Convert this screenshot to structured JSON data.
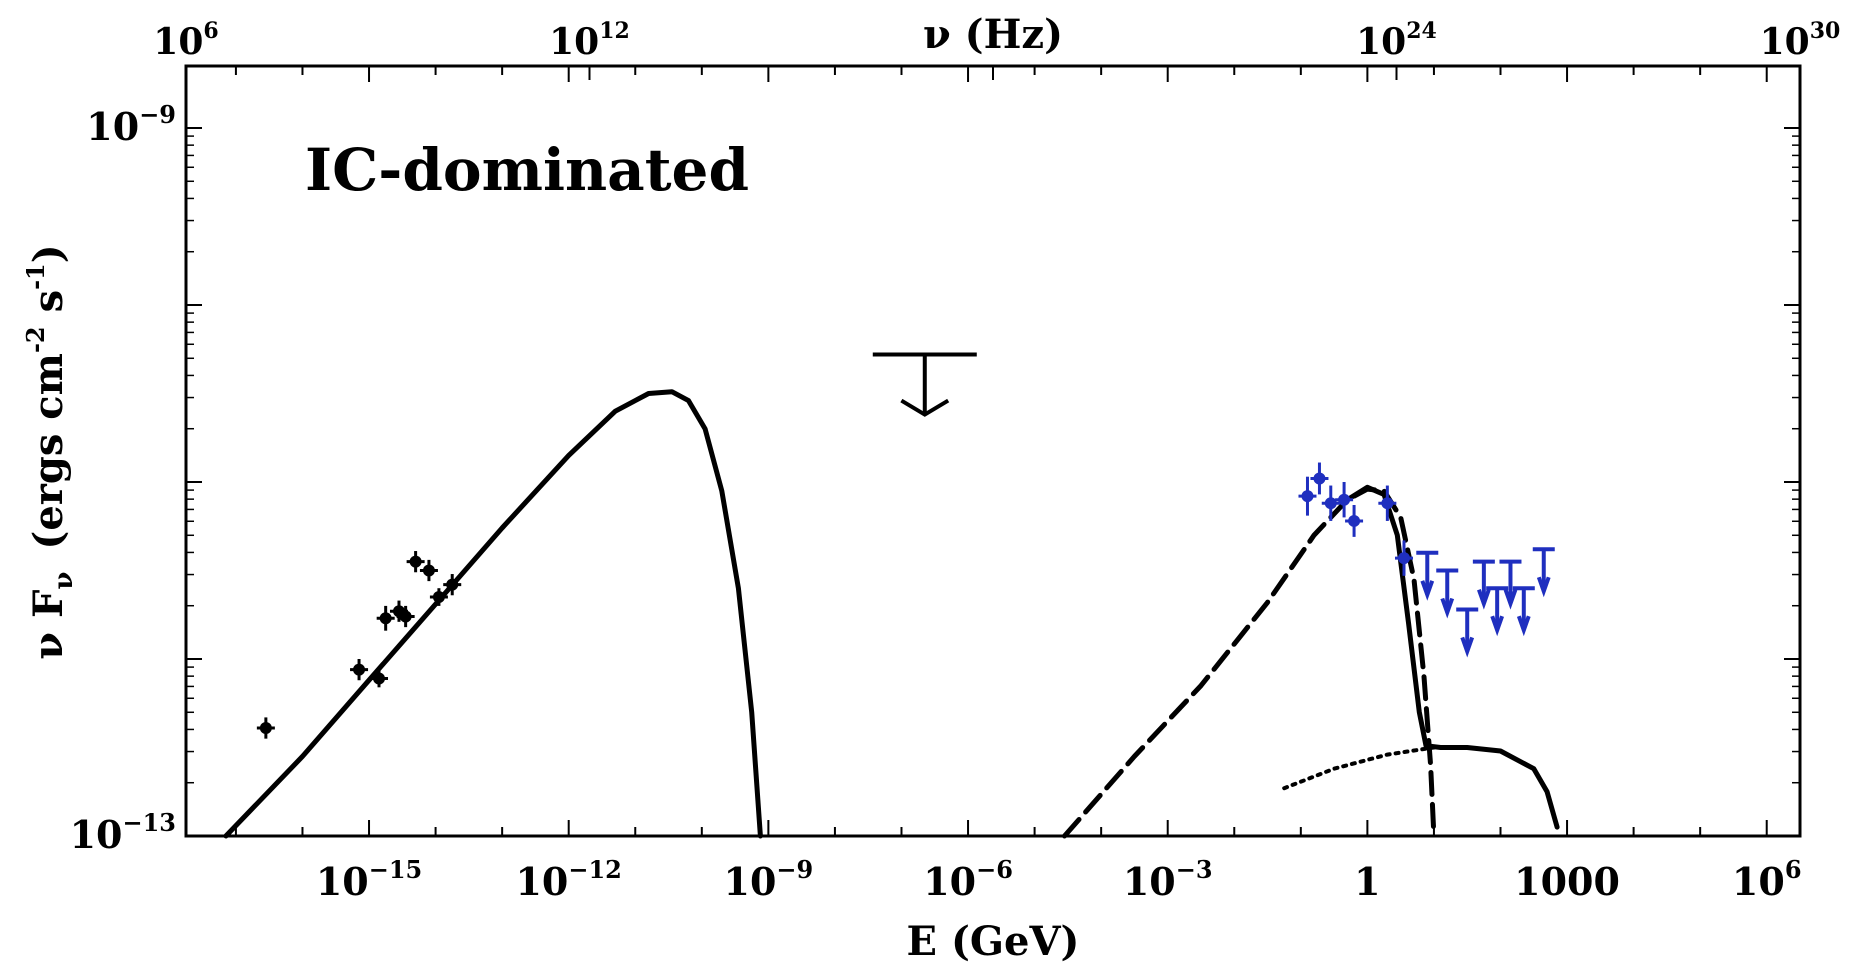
{
  "chart_data": {
    "type": "scatter",
    "xlabel": "E (GeV)",
    "ylabel": "ν F",
    "ylabel_sub": "ν",
    "ylabel_units": "(ergs cm",
    "ylabel_units_exp1": "-2",
    "ylabel_units_mid": " s",
    "ylabel_units_exp2": "-1",
    "ylabel_units_end": ")",
    "x2label": "ν (Hz)",
    "annotation": "IC-dominated",
    "x_scale": "log",
    "y_scale": "log",
    "xlim_log10": [
      -17.75,
      6.5
    ],
    "ylim_log10": [
      -13,
      -9.25
    ],
    "x2lim_log10": [
      6,
      30
    ],
    "x_ticks": [
      {
        "base": "10",
        "exp": "−15",
        "log": -15
      },
      {
        "base": "10",
        "exp": "−12",
        "log": -12
      },
      {
        "base": "10",
        "exp": "−9",
        "log": -9
      },
      {
        "base": "10",
        "exp": "−6",
        "log": -6
      },
      {
        "base": "10",
        "exp": "−3",
        "log": -3
      },
      {
        "base": "1",
        "exp": "",
        "log": 0
      },
      {
        "base": "1000",
        "exp": "",
        "log": 3
      },
      {
        "base": "10",
        "exp": "6",
        "log": 6
      }
    ],
    "x2_ticks": [
      {
        "base": "10",
        "exp": "6",
        "log": 6
      },
      {
        "base": "10",
        "exp": "12",
        "log": 12
      },
      {
        "base": "10",
        "exp": "24",
        "log": 24
      },
      {
        "base": "10",
        "exp": "30",
        "log": 30
      }
    ],
    "y_ticks": [
      {
        "base": "10",
        "exp": "−9",
        "log": -9
      },
      {
        "base": "10",
        "exp": "−13",
        "log": -13
      }
    ],
    "series": [
      {
        "style": "solid",
        "color": "#000000",
        "points": [
          [
            -17.15,
            -13.0
          ],
          [
            -16,
            -12.55
          ],
          [
            -15,
            -12.12
          ],
          [
            -14,
            -11.69
          ],
          [
            -13,
            -11.26
          ],
          [
            -12,
            -10.85
          ],
          [
            -11.3,
            -10.6
          ],
          [
            -10.8,
            -10.5
          ],
          [
            -10.45,
            -10.49
          ],
          [
            -10.2,
            -10.54
          ],
          [
            -9.95,
            -10.7
          ],
          [
            -9.7,
            -11.05
          ],
          [
            -9.45,
            -11.6
          ],
          [
            -9.25,
            -12.3
          ],
          [
            -9.12,
            -13.0
          ]
        ]
      },
      {
        "style": "dashed",
        "color": "#000000",
        "points": [
          [
            -4.55,
            -13.0
          ],
          [
            -3.5,
            -12.55
          ],
          [
            -2.5,
            -12.15
          ],
          [
            -1.5,
            -11.68
          ],
          [
            -0.8,
            -11.3
          ],
          [
            -0.3,
            -11.1
          ],
          [
            0.0,
            -11.04
          ],
          [
            0.25,
            -11.05
          ],
          [
            0.5,
            -11.2
          ],
          [
            0.7,
            -11.55
          ],
          [
            0.85,
            -12.1
          ],
          [
            0.95,
            -12.6
          ],
          [
            1.0,
            -13.0
          ]
        ]
      },
      {
        "style": "dotted",
        "color": "#000000",
        "points": [
          [
            -1.25,
            -12.73
          ],
          [
            -0.5,
            -12.62
          ],
          [
            0.3,
            -12.54
          ],
          [
            1.0,
            -12.5
          ]
        ]
      },
      {
        "style": "solid",
        "color": "#000000",
        "points": [
          [
            -0.3,
            -11.1
          ],
          [
            0.0,
            -11.03
          ],
          [
            0.25,
            -11.07
          ],
          [
            0.45,
            -11.3
          ],
          [
            0.62,
            -11.8
          ],
          [
            0.78,
            -12.3
          ],
          [
            0.88,
            -12.49
          ],
          [
            1.1,
            -12.5
          ],
          [
            1.5,
            -12.5
          ],
          [
            2.0,
            -12.52
          ],
          [
            2.5,
            -12.62
          ],
          [
            2.7,
            -12.75
          ],
          [
            2.85,
            -12.95
          ]
        ]
      }
    ],
    "data_points_black": [
      {
        "x": -16.55,
        "y": -12.39,
        "yerr": 0.06
      },
      {
        "x": -15.15,
        "y": -12.06,
        "yerr": 0.06
      },
      {
        "x": -14.85,
        "y": -12.11,
        "yerr": 0.05
      },
      {
        "x": -14.75,
        "y": -11.77,
        "yerr": 0.07
      },
      {
        "x": -14.55,
        "y": -11.73,
        "yerr": 0.06
      },
      {
        "x": -14.45,
        "y": -11.76,
        "yerr": 0.06
      },
      {
        "x": -14.3,
        "y": -11.45,
        "yerr": 0.06
      },
      {
        "x": -14.1,
        "y": -11.5,
        "yerr": 0.06
      },
      {
        "x": -13.95,
        "y": -11.65,
        "yerr": 0.05
      },
      {
        "x": -13.75,
        "y": -11.58,
        "yerr": 0.06
      }
    ],
    "upper_limit_black": {
      "x": -6.65,
      "y": -10.28
    },
    "data_points_blue": [
      {
        "x": -0.9,
        "y": -11.08,
        "yerr": 0.11
      },
      {
        "x": -0.72,
        "y": -10.98,
        "yerr": 0.09
      },
      {
        "x": -0.55,
        "y": -11.12,
        "yerr": 0.1
      },
      {
        "x": -0.35,
        "y": -11.1,
        "yerr": 0.1
      },
      {
        "x": -0.2,
        "y": -11.22,
        "yerr": 0.09
      },
      {
        "x": 0.3,
        "y": -11.12,
        "yerr": 0.1
      },
      {
        "x": 0.55,
        "y": -11.43,
        "yerr": 0.1
      }
    ],
    "upper_limits_blue": [
      {
        "x": 0.9,
        "y": -11.4
      },
      {
        "x": 1.2,
        "y": -11.5
      },
      {
        "x": 1.5,
        "y": -11.72
      },
      {
        "x": 1.75,
        "y": -11.45
      },
      {
        "x": 1.95,
        "y": -11.6
      },
      {
        "x": 2.15,
        "y": -11.45
      },
      {
        "x": 2.35,
        "y": -11.6
      },
      {
        "x": 2.65,
        "y": -11.38
      }
    ],
    "grid": false
  }
}
